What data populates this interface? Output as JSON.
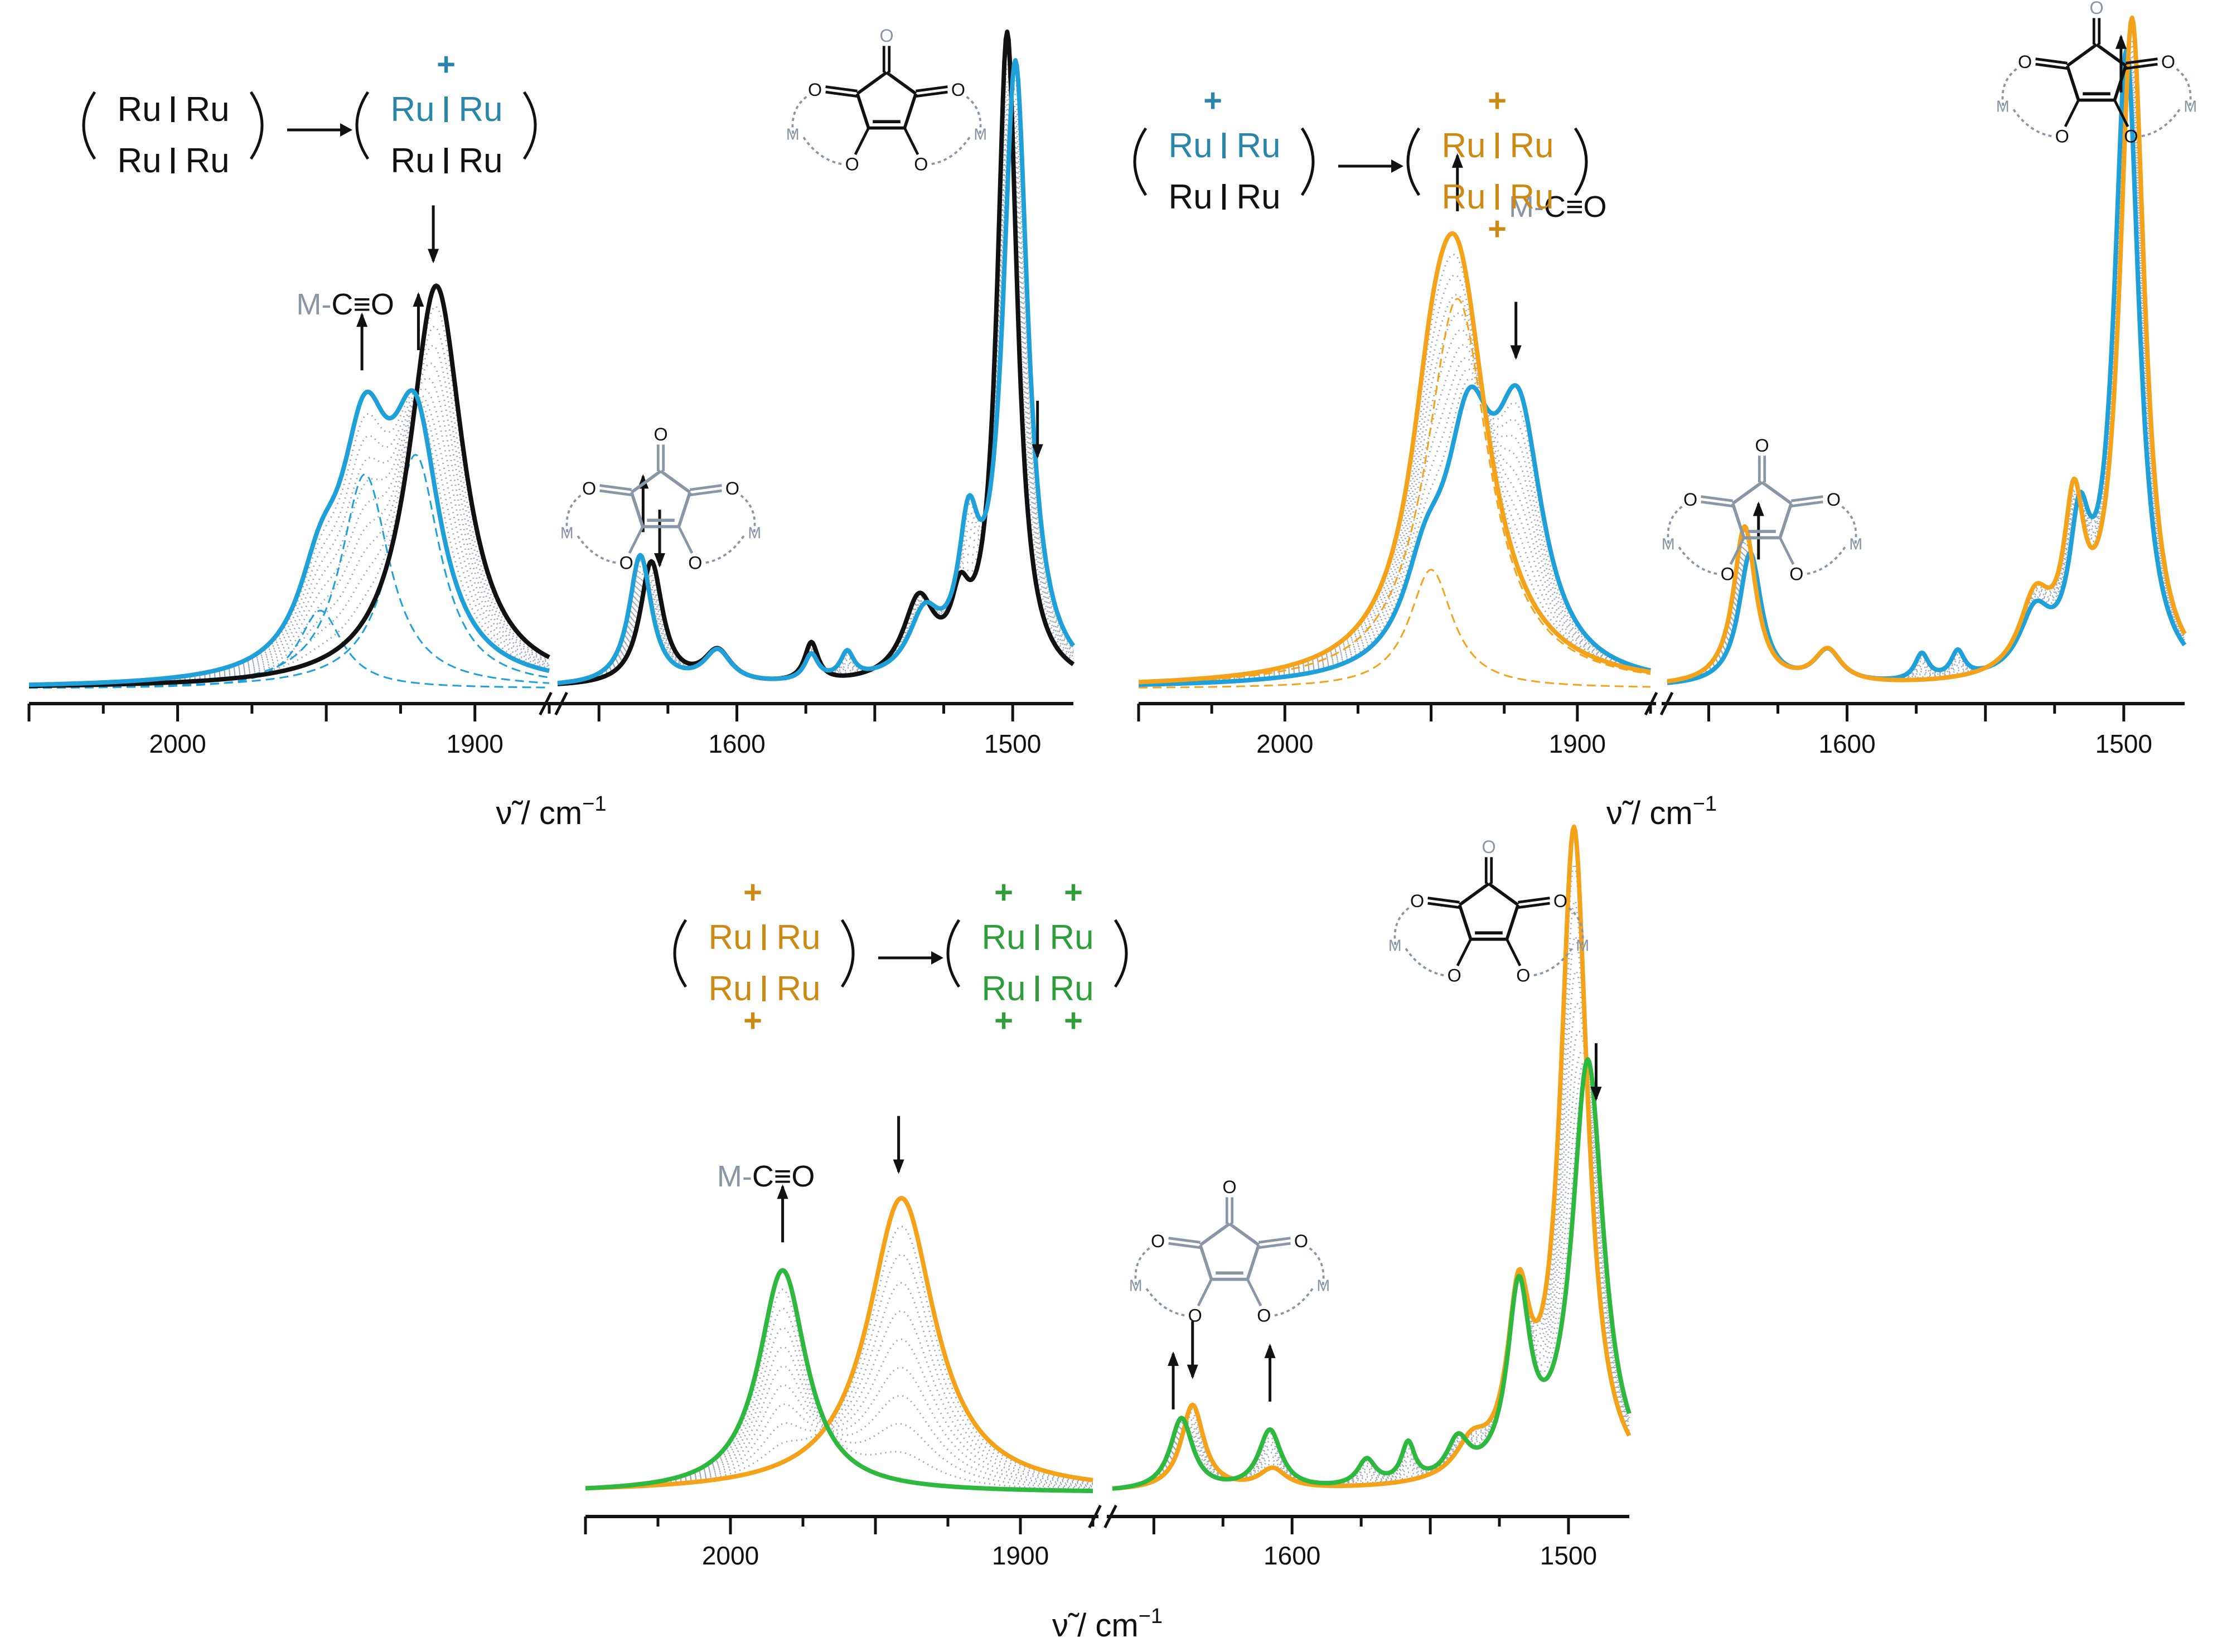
{
  "colors": {
    "neutral": "#111111",
    "mono_cation": "#1fa0d8",
    "dication": "#f5a21b",
    "tetracation": "#2fb83f",
    "mono_ru": "#2a86a8",
    "di_ru": "#cc8a14",
    "tetra_ru": "#2e9e3a",
    "gray": "#8896a6",
    "dotted": "#9aa6b6"
  },
  "panels": [
    {
      "id": "a",
      "xlabel": "ν̃ / cm",
      "xlabel_sup": "−1",
      "reaction": {
        "left_top": [
          "Ru",
          "Ru"
        ],
        "left_bottom": [
          "Ru",
          "Ru"
        ],
        "right_top": [
          "Ru",
          "Ru"
        ],
        "right_bottom": [
          "Ru",
          "Ru"
        ],
        "plus_marks": [
          "+"
        ]
      },
      "co_label": {
        "m": "M-",
        "rest": "C≡O"
      },
      "molecule_labels": {
        "o": "O",
        "m": "M"
      }
    },
    {
      "id": "b",
      "xlabel": "ν̃ / cm",
      "xlabel_sup": "−1",
      "reaction": {
        "left_top": [
          "Ru",
          "Ru"
        ],
        "left_bottom": [
          "Ru",
          "Ru"
        ],
        "right_top": [
          "Ru",
          "Ru"
        ],
        "right_bottom": [
          "Ru",
          "Ru"
        ],
        "plus_marks": [
          "+",
          "+",
          "+"
        ]
      },
      "co_label": {
        "m": "M-",
        "rest": "C≡O"
      },
      "molecule_labels": {
        "o": "O",
        "m": "M"
      }
    },
    {
      "id": "c",
      "xlabel": "ν̃ / cm",
      "xlabel_sup": "−1",
      "reaction": {
        "left_top": [
          "Ru",
          "Ru"
        ],
        "left_bottom": [
          "Ru",
          "Ru"
        ],
        "right_top": [
          "Ru",
          "Ru"
        ],
        "right_bottom": [
          "Ru",
          "Ru"
        ],
        "plus_marks": [
          "+",
          "+",
          "+",
          "+",
          "+",
          "+"
        ]
      },
      "co_label": {
        "m": "M-",
        "rest": "C≡O"
      },
      "molecule_labels": {
        "o": "O",
        "m": "M"
      }
    }
  ],
  "chart_data": [
    {
      "type": "line",
      "title": "",
      "xlabel": "ν̃ / cm−1",
      "ylabel": "",
      "x_axis": "reversed, broken between 1875 and 1665",
      "segments": [
        [
          2050,
          1875
        ],
        [
          1665,
          1478
        ]
      ],
      "xticks": [
        2000,
        1900,
        1600,
        1500
      ],
      "xtick_labels": [
        "2000",
        "1900",
        "1600",
        "1500"
      ],
      "ylim": [
        0,
        1.0
      ],
      "series": [
        {
          "name": "neutral",
          "color": "neutral",
          "peaks": [
            [
              1913,
              0.62,
              11
            ],
            [
              1631,
              0.19,
              5
            ],
            [
              1607,
              0.05,
              6
            ],
            [
              1573,
              0.06,
              3
            ],
            [
              1534,
              0.12,
              7
            ],
            [
              1519,
              0.09,
              4
            ],
            [
              1502,
              1.0,
              4.5
            ]
          ]
        },
        {
          "name": "monocation",
          "color": "mono_cation",
          "peaks": [
            [
              1952,
              0.12,
              9
            ],
            [
              1937,
              0.33,
              10
            ],
            [
              1920,
              0.36,
              10
            ],
            [
              1635,
              0.2,
              5
            ],
            [
              1607,
              0.05,
              6
            ],
            [
              1573,
              0.04,
              3
            ],
            [
              1560,
              0.04,
              3
            ],
            [
              1532,
              0.09,
              7
            ],
            [
              1516,
              0.19,
              4.5
            ],
            [
              1499,
              0.95,
              5.5
            ]
          ]
        }
      ],
      "fit_components": [
        [
          1952,
          0.12,
          9
        ],
        [
          1937,
          0.33,
          10
        ],
        [
          1920,
          0.36,
          10
        ]
      ],
      "arrows": [
        {
          "x": 1938,
          "direction": "up"
        },
        {
          "x": 1919,
          "direction": "up"
        },
        {
          "x": 1914,
          "direction": "down"
        },
        {
          "x": 1634,
          "direction": "up"
        },
        {
          "x": 1628,
          "direction": "down"
        },
        {
          "x": 1491,
          "direction": "down"
        }
      ]
    },
    {
      "type": "line",
      "title": "",
      "xlabel": "ν̃ / cm−1",
      "ylabel": "",
      "x_axis": "reversed, broken between 1875 and 1665",
      "segments": [
        [
          2050,
          1875
        ],
        [
          1665,
          1478
        ]
      ],
      "xticks": [
        2000,
        1900,
        1600,
        1500
      ],
      "xtick_labels": [
        "2000",
        "1900",
        "1600",
        "1500"
      ],
      "ylim": [
        0,
        1.0
      ],
      "series": [
        {
          "name": "monocation",
          "color": "mono_cation",
          "peaks": [
            [
              1952,
              0.12,
              9
            ],
            [
              1937,
              0.33,
              10
            ],
            [
              1920,
              0.36,
              10
            ],
            [
              1635,
              0.2,
              5
            ],
            [
              1607,
              0.05,
              6
            ],
            [
              1573,
              0.04,
              3
            ],
            [
              1560,
              0.04,
              3
            ],
            [
              1532,
              0.09,
              7
            ],
            [
              1516,
              0.19,
              4.5
            ],
            [
              1499,
              0.95,
              5.5
            ]
          ]
        },
        {
          "name": "dication",
          "color": "dication",
          "peaks": [
            [
              1950,
              0.18,
              9
            ],
            [
              1941,
              0.59,
              13
            ],
            [
              1637,
              0.24,
              5
            ],
            [
              1607,
              0.05,
              6
            ],
            [
              1532,
              0.11,
              7
            ],
            [
              1518,
              0.23,
              4.5
            ],
            [
              1497,
              1.0,
              5.5
            ]
          ]
        }
      ],
      "fit_components": [
        [
          1950,
          0.18,
          9
        ],
        [
          1941,
          0.59,
          13
        ]
      ],
      "arrows": [
        {
          "x": 1941,
          "direction": "up"
        },
        {
          "x": 1921,
          "direction": "down"
        },
        {
          "x": 1632,
          "direction": "up"
        },
        {
          "x": 1501,
          "direction": "up"
        }
      ]
    },
    {
      "type": "line",
      "title": "",
      "xlabel": "ν̃ / cm−1",
      "ylabel": "",
      "x_axis": "reversed, broken between 1875 and 1665",
      "segments": [
        [
          2050,
          1875
        ],
        [
          1665,
          1478
        ]
      ],
      "xticks": [
        2000,
        1900,
        1600,
        1500
      ],
      "xtick_labels": [
        "2000",
        "1900",
        "1600",
        "1500"
      ],
      "ylim": [
        0,
        1.0
      ],
      "series": [
        {
          "name": "dication",
          "color": "dication",
          "peaks": [
            [
              1941,
              0.45,
              14
            ],
            [
              1636,
              0.13,
              5
            ],
            [
              1607,
              0.03,
              6
            ],
            [
              1535,
              0.05,
              7
            ],
            [
              1518,
              0.25,
              5
            ],
            [
              1498,
              1.0,
              6
            ]
          ]
        },
        {
          "name": "tetracation",
          "color": "tetracation",
          "peaks": [
            [
              1982,
              0.34,
              10
            ],
            [
              1640,
              0.11,
              5
            ],
            [
              1608,
              0.09,
              5
            ],
            [
              1573,
              0.04,
              4
            ],
            [
              1558,
              0.06,
              3
            ],
            [
              1540,
              0.06,
              5
            ],
            [
              1518,
              0.28,
              5
            ],
            [
              1493,
              0.65,
              7
            ]
          ]
        }
      ],
      "fit_components": [],
      "arrows": [
        {
          "x": 1982,
          "direction": "up"
        },
        {
          "x": 1942,
          "direction": "down"
        },
        {
          "x": 1643,
          "direction": "up"
        },
        {
          "x": 1636,
          "direction": "down"
        },
        {
          "x": 1608,
          "direction": "up"
        },
        {
          "x": 1490,
          "direction": "down"
        }
      ]
    }
  ]
}
